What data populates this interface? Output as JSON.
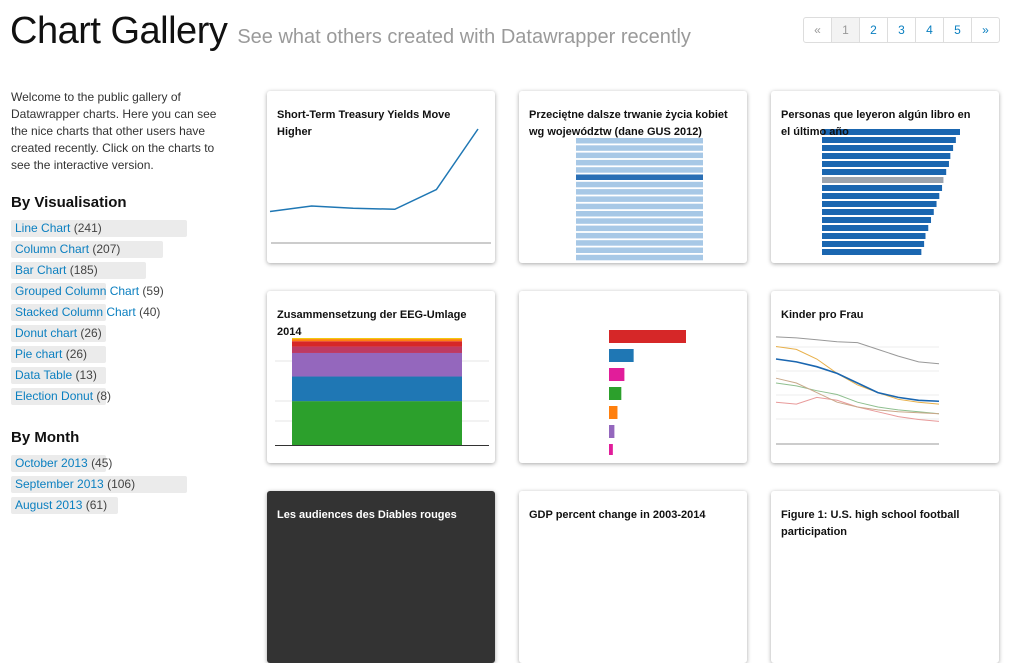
{
  "header": {
    "title": "Chart Gallery",
    "subtitle": "See what others created with Datawrapper recently"
  },
  "pagination": {
    "items": [
      "«",
      "1",
      "2",
      "3",
      "4",
      "5",
      "»"
    ],
    "current": "1"
  },
  "sidebar": {
    "intro": "Welcome to the public gallery of Datawrapper charts. Here you can see the nice charts that other users have created recently. Click on the charts to see the interactive version.",
    "by_vis_title": "By Visualisation",
    "by_vis": [
      {
        "name": "Line Chart",
        "count": "(241)",
        "share": 0.86
      },
      {
        "name": "Column Chart",
        "count": "(207)",
        "share": 0.74
      },
      {
        "name": "Bar Chart",
        "count": "(185)",
        "share": 0.66
      },
      {
        "name": "Grouped Column Chart",
        "count": "(59)",
        "share": 0.22
      },
      {
        "name": "Stacked Column Chart",
        "count": "(40)",
        "share": 0.15
      },
      {
        "name": "Donut chart",
        "count": "(26)",
        "share": 0.1
      },
      {
        "name": "Pie chart",
        "count": "(26)",
        "share": 0.1
      },
      {
        "name": "Data Table",
        "count": "(13)",
        "share": 0.05
      },
      {
        "name": "Election Donut",
        "count": "(8)",
        "share": 0.03
      }
    ],
    "by_month_title": "By Month",
    "by_month": [
      {
        "name": "October 2013",
        "count": "(45)",
        "share": 0.38
      },
      {
        "name": "September 2013",
        "count": "(106)",
        "share": 0.86
      },
      {
        "name": "August 2013",
        "count": "(61)",
        "share": 0.52
      }
    ]
  },
  "cards": [
    {
      "title": "Short-Term Treasury Yields Move Higher",
      "theme": "light"
    },
    {
      "title": "Przeciętne dalsze trwanie życia kobiet wg województw (dane GUS 2012)",
      "theme": "light"
    },
    {
      "title": "Personas que leyeron algún libro en el último año",
      "theme": "light"
    },
    {
      "title": "Zusammensetzung der EEG-Umlage 2014",
      "theme": "light"
    },
    {
      "title": "",
      "theme": "light"
    },
    {
      "title": "Kinder pro Frau",
      "theme": "light"
    },
    {
      "title": "Les audiences des Diables rouges",
      "theme": "dark"
    },
    {
      "title": "GDP percent change in 2003-2014",
      "theme": "light"
    },
    {
      "title": "Figure 1: U.S. high school football participation",
      "theme": "light"
    }
  ],
  "thumbs": {
    "line": {
      "values": [
        0.25,
        0.3,
        0.28,
        0.27,
        0.45,
        1.0
      ]
    },
    "hbars_light": {
      "n": 17,
      "highlight": 5,
      "color": "#a7c8e6",
      "highlight_color": "#2a6fb5"
    },
    "hbars_blue": {
      "values": [
        1.0,
        0.97,
        0.95,
        0.93,
        0.92,
        0.9,
        0.88,
        0.87,
        0.85,
        0.83,
        0.81,
        0.79,
        0.77,
        0.75,
        0.74,
        0.72
      ],
      "highlight": 6,
      "color": "#1a66b0",
      "highlight_color": "#9da4ad"
    },
    "stack": {
      "segments": [
        {
          "share": 0.41,
          "color": "#2ca02c"
        },
        {
          "share": 0.23,
          "color": "#1f77b4"
        },
        {
          "share": 0.22,
          "color": "#9467bd"
        },
        {
          "share": 0.06,
          "color": "#bd3a63"
        },
        {
          "share": 0.05,
          "color": "#d62728"
        },
        {
          "share": 0.02,
          "color": "#ff7f0e"
        },
        {
          "share": 0.01,
          "color": "#f2c80f"
        }
      ]
    },
    "mini_bars": [
      {
        "share": 1.0,
        "color": "#d62728"
      },
      {
        "share": 0.32,
        "color": "#1f77b4"
      },
      {
        "share": 0.2,
        "color": "#e11d9a"
      },
      {
        "share": 0.16,
        "color": "#2ca02c"
      },
      {
        "share": 0.11,
        "color": "#ff7f0e"
      },
      {
        "share": 0.07,
        "color": "#9467bd"
      },
      {
        "share": 0.05,
        "color": "#e11d9a"
      },
      {
        "share": 0.03,
        "color": "#1f77b4"
      }
    ],
    "multi_line": [
      {
        "color": "#999999",
        "values": [
          0.98,
          0.97,
          0.95,
          0.93,
          0.92,
          0.85,
          0.78,
          0.72,
          0.7
        ]
      },
      {
        "color": "#e8b04a",
        "values": [
          0.88,
          0.85,
          0.75,
          0.6,
          0.48,
          0.4,
          0.33,
          0.3,
          0.28
        ]
      },
      {
        "color": "#1a66b0",
        "values": [
          0.75,
          0.72,
          0.67,
          0.6,
          0.5,
          0.4,
          0.35,
          0.32,
          0.31
        ]
      },
      {
        "color": "#8fbf8f",
        "values": [
          0.5,
          0.47,
          0.42,
          0.38,
          0.3,
          0.25,
          0.22,
          0.2,
          0.18
        ]
      },
      {
        "color": "#e89a9a",
        "values": [
          0.3,
          0.28,
          0.35,
          0.32,
          0.25,
          0.2,
          0.15,
          0.12,
          0.1
        ]
      },
      {
        "color": "#c9a88a",
        "values": [
          0.55,
          0.5,
          0.4,
          0.3,
          0.25,
          0.22,
          0.2,
          0.19,
          0.18
        ]
      }
    ]
  }
}
